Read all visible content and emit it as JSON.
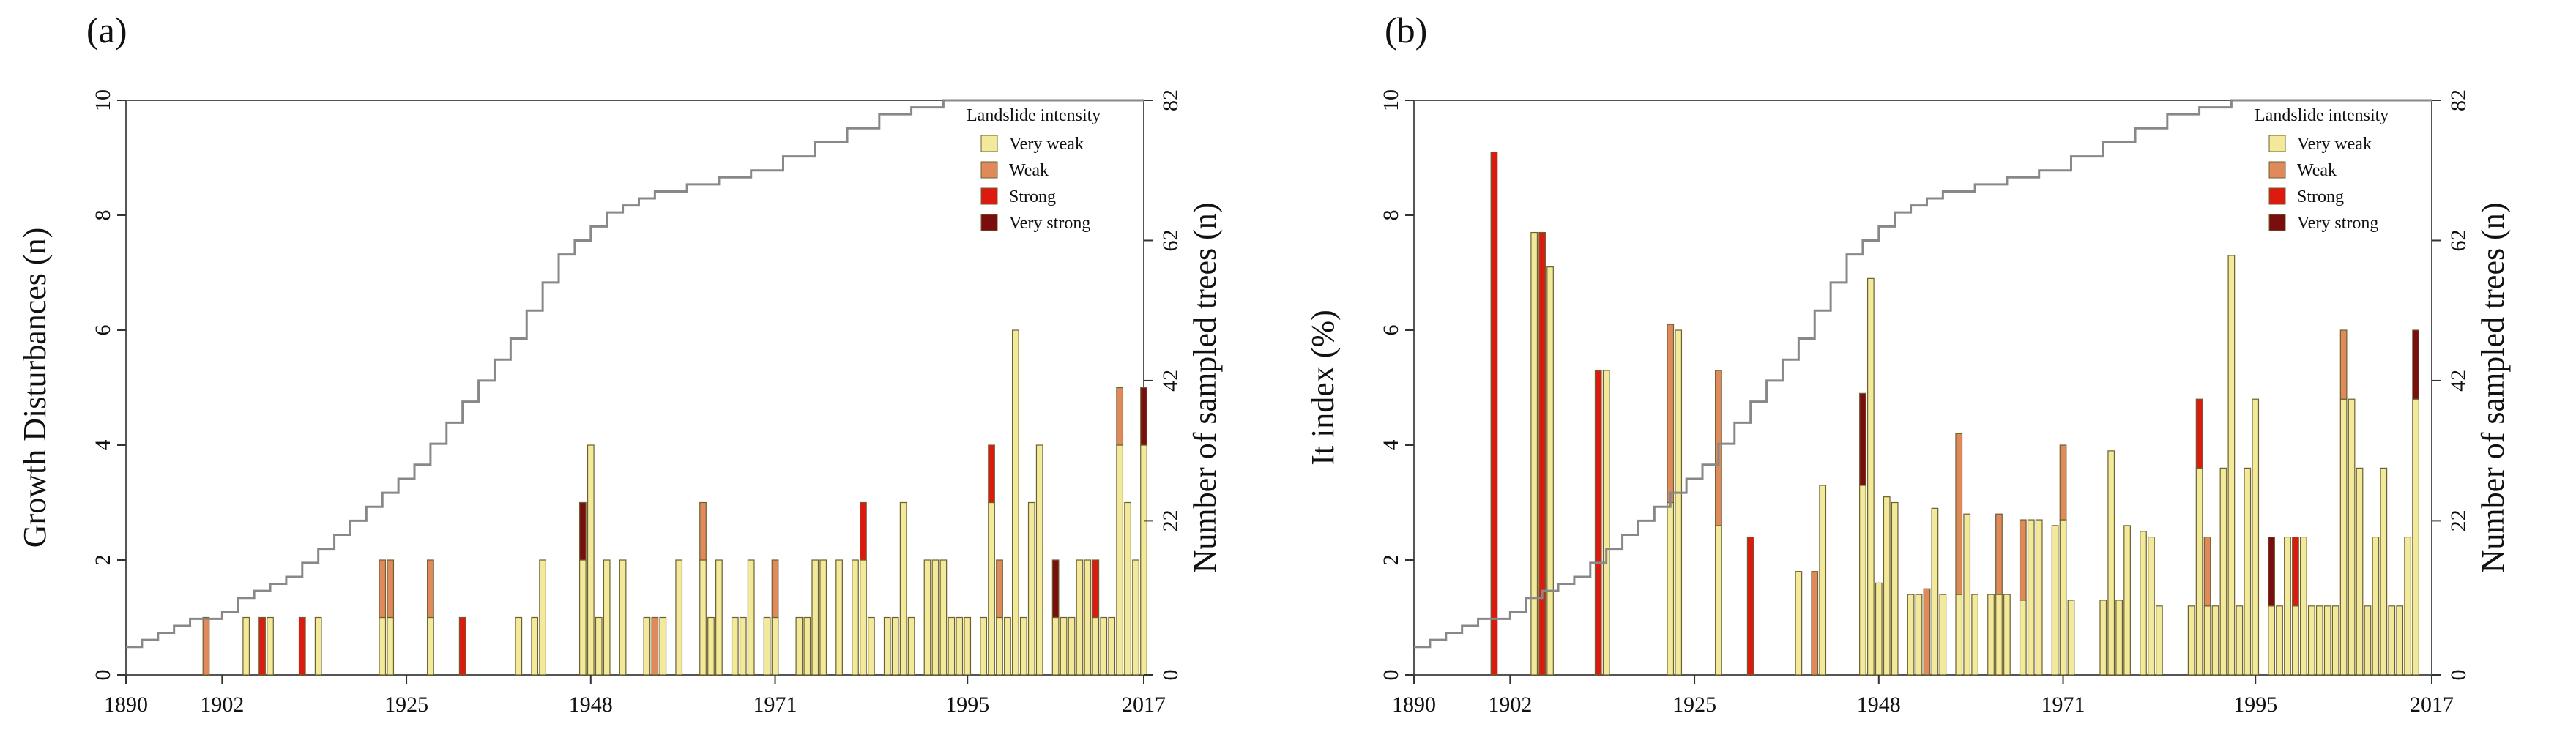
{
  "chart_data": [
    {
      "type": "bar",
      "panel_label": "(a)",
      "ylabel": "Growth Disturbances (n)",
      "y2label": "Number of sampled trees (n)",
      "xlim": [
        1890,
        2017
      ],
      "ylim": [
        0,
        10
      ],
      "y2lim": [
        0,
        82
      ],
      "xticks": [
        1890,
        1902,
        1925,
        1948,
        1971,
        1995,
        2017
      ],
      "yticks": [
        0,
        2,
        4,
        6,
        8,
        10
      ],
      "y2ticks": [
        0,
        22,
        42,
        62,
        82
      ],
      "grid": false,
      "legend_title": "Landslide intensity",
      "legend_position": "top-right",
      "series": [
        {
          "name": "Very weak",
          "color": "#f3e99a"
        },
        {
          "name": "Weak",
          "color": "#e08a5c"
        },
        {
          "name": "Strong",
          "color": "#dd1a10"
        },
        {
          "name": "Very strong",
          "color": "#7a0e0e"
        }
      ],
      "bars": [
        [
          1900,
          0,
          1,
          0,
          0
        ],
        [
          1905,
          1,
          0,
          0,
          0
        ],
        [
          1907,
          0,
          0,
          1,
          0
        ],
        [
          1908,
          1,
          0,
          0,
          0
        ],
        [
          1912,
          0,
          0,
          1,
          0
        ],
        [
          1914,
          1,
          0,
          0,
          0
        ],
        [
          1922,
          1,
          1,
          0,
          0
        ],
        [
          1923,
          1,
          1,
          0,
          0
        ],
        [
          1928,
          1,
          1,
          0,
          0
        ],
        [
          1932,
          0,
          0,
          1,
          0
        ],
        [
          1939,
          1,
          0,
          0,
          0
        ],
        [
          1941,
          1,
          0,
          0,
          0
        ],
        [
          1942,
          2,
          0,
          0,
          0
        ],
        [
          1947,
          2,
          0,
          0,
          1
        ],
        [
          1948,
          4,
          0,
          0,
          0
        ],
        [
          1949,
          1,
          0,
          0,
          0
        ],
        [
          1950,
          2,
          0,
          0,
          0
        ],
        [
          1952,
          2,
          0,
          0,
          0
        ],
        [
          1955,
          1,
          0,
          0,
          0
        ],
        [
          1956,
          0,
          1,
          0,
          0
        ],
        [
          1957,
          1,
          0,
          0,
          0
        ],
        [
          1959,
          2,
          0,
          0,
          0
        ],
        [
          1962,
          2,
          1,
          0,
          0
        ],
        [
          1963,
          1,
          0,
          0,
          0
        ],
        [
          1964,
          2,
          0,
          0,
          0
        ],
        [
          1966,
          1,
          0,
          0,
          0
        ],
        [
          1967,
          1,
          0,
          0,
          0
        ],
        [
          1968,
          2,
          0,
          0,
          0
        ],
        [
          1970,
          1,
          0,
          0,
          0
        ],
        [
          1971,
          1,
          1,
          0,
          0
        ],
        [
          1974,
          1,
          0,
          0,
          0
        ],
        [
          1975,
          1,
          0,
          0,
          0
        ],
        [
          1976,
          2,
          0,
          0,
          0
        ],
        [
          1977,
          2,
          0,
          0,
          0
        ],
        [
          1979,
          2,
          0,
          0,
          0
        ],
        [
          1981,
          2,
          0,
          0,
          0
        ],
        [
          1982,
          2,
          0,
          1,
          0
        ],
        [
          1983,
          1,
          0,
          0,
          0
        ],
        [
          1985,
          1,
          0,
          0,
          0
        ],
        [
          1986,
          1,
          0,
          0,
          0
        ],
        [
          1987,
          3,
          0,
          0,
          0
        ],
        [
          1988,
          1,
          0,
          0,
          0
        ],
        [
          1990,
          2,
          0,
          0,
          0
        ],
        [
          1991,
          2,
          0,
          0,
          0
        ],
        [
          1992,
          2,
          0,
          0,
          0
        ],
        [
          1993,
          1,
          0,
          0,
          0
        ],
        [
          1994,
          1,
          0,
          0,
          0
        ],
        [
          1995,
          1,
          0,
          0,
          0
        ],
        [
          1997,
          1,
          0,
          0,
          0
        ],
        [
          1998,
          3,
          0,
          1,
          0
        ],
        [
          1999,
          1,
          1,
          0,
          0
        ],
        [
          2000,
          1,
          0,
          0,
          0
        ],
        [
          2001,
          6,
          0,
          0,
          0
        ],
        [
          2002,
          1,
          0,
          0,
          0
        ],
        [
          2003,
          3,
          0,
          0,
          0
        ],
        [
          2004,
          4,
          0,
          0,
          0
        ],
        [
          2006,
          1,
          0,
          0,
          1
        ],
        [
          2007,
          1,
          0,
          0,
          0
        ],
        [
          2008,
          1,
          0,
          0,
          0
        ],
        [
          2009,
          2,
          0,
          0,
          0
        ],
        [
          2010,
          2,
          0,
          0,
          0
        ],
        [
          2011,
          1,
          0,
          1,
          0
        ],
        [
          2012,
          1,
          0,
          0,
          0
        ],
        [
          2013,
          1,
          0,
          0,
          0
        ],
        [
          2014,
          4,
          1,
          0,
          0
        ],
        [
          2015,
          3,
          0,
          0,
          0
        ],
        [
          2016,
          2,
          0,
          0,
          0
        ],
        [
          2017,
          4,
          0,
          0,
          1
        ]
      ],
      "sampled_trees": [
        [
          1890,
          4
        ],
        [
          1892,
          5
        ],
        [
          1894,
          6
        ],
        [
          1896,
          7
        ],
        [
          1898,
          8
        ],
        [
          1902,
          9
        ],
        [
          1904,
          11
        ],
        [
          1906,
          12
        ],
        [
          1908,
          13
        ],
        [
          1910,
          14
        ],
        [
          1912,
          16
        ],
        [
          1914,
          18
        ],
        [
          1916,
          20
        ],
        [
          1918,
          22
        ],
        [
          1920,
          24
        ],
        [
          1922,
          26
        ],
        [
          1924,
          28
        ],
        [
          1926,
          30
        ],
        [
          1928,
          33
        ],
        [
          1930,
          36
        ],
        [
          1932,
          39
        ],
        [
          1934,
          42
        ],
        [
          1936,
          45
        ],
        [
          1938,
          48
        ],
        [
          1940,
          52
        ],
        [
          1942,
          56
        ],
        [
          1944,
          60
        ],
        [
          1946,
          62
        ],
        [
          1948,
          64
        ],
        [
          1950,
          66
        ],
        [
          1952,
          67
        ],
        [
          1954,
          68
        ],
        [
          1956,
          69
        ],
        [
          1958,
          69
        ],
        [
          1960,
          70
        ],
        [
          1964,
          71
        ],
        [
          1968,
          72
        ],
        [
          1972,
          74
        ],
        [
          1976,
          76
        ],
        [
          1980,
          78
        ],
        [
          1984,
          80
        ],
        [
          1988,
          81
        ],
        [
          1992,
          82
        ],
        [
          2017,
          82
        ]
      ]
    },
    {
      "type": "bar",
      "panel_label": "(b)",
      "ylabel": "It index (%)",
      "y2label": "Number of sampled trees (n)",
      "xlim": [
        1890,
        2017
      ],
      "ylim": [
        0,
        10
      ],
      "y2lim": [
        0,
        82
      ],
      "xticks": [
        1890,
        1902,
        1925,
        1948,
        1971,
        1995,
        2017
      ],
      "yticks": [
        0,
        2,
        4,
        6,
        8,
        10
      ],
      "y2ticks": [
        0,
        22,
        42,
        62,
        82
      ],
      "grid": false,
      "legend_title": "Landslide intensity",
      "legend_position": "top-right",
      "series": [
        {
          "name": "Very weak",
          "color": "#f3e99a"
        },
        {
          "name": "Weak",
          "color": "#e08a5c"
        },
        {
          "name": "Strong",
          "color": "#dd1a10"
        },
        {
          "name": "Very strong",
          "color": "#7a0e0e"
        }
      ],
      "bars": [
        [
          1900,
          0,
          0,
          9.1,
          0
        ],
        [
          1905,
          7.7,
          0,
          0,
          0
        ],
        [
          1906,
          0,
          0,
          7.7,
          0
        ],
        [
          1907,
          7.1,
          0,
          0,
          0
        ],
        [
          1913,
          0,
          0,
          5.3,
          0
        ],
        [
          1914,
          5.3,
          0,
          0,
          0
        ],
        [
          1922,
          3.0,
          3.1,
          0,
          0
        ],
        [
          1923,
          6.0,
          0,
          0,
          0
        ],
        [
          1928,
          2.6,
          2.7,
          0,
          0
        ],
        [
          1932,
          0,
          0,
          2.4,
          0
        ],
        [
          1938,
          1.8,
          0,
          0,
          0
        ],
        [
          1940,
          0,
          1.8,
          0,
          0
        ],
        [
          1941,
          3.3,
          0,
          0,
          0
        ],
        [
          1946,
          3.3,
          0,
          0,
          1.6
        ],
        [
          1947,
          6.9,
          0,
          0,
          0
        ],
        [
          1948,
          1.6,
          0,
          0,
          0
        ],
        [
          1949,
          3.1,
          0,
          0,
          0
        ],
        [
          1950,
          3.0,
          0,
          0,
          0
        ],
        [
          1952,
          1.4,
          0,
          0,
          0
        ],
        [
          1953,
          1.4,
          0,
          0,
          0
        ],
        [
          1954,
          0,
          1.5,
          0,
          0
        ],
        [
          1955,
          2.9,
          0,
          0,
          0
        ],
        [
          1956,
          1.4,
          0,
          0,
          0
        ],
        [
          1958,
          1.4,
          2.8,
          0,
          0
        ],
        [
          1959,
          2.8,
          0,
          0,
          0
        ],
        [
          1960,
          1.4,
          0,
          0,
          0
        ],
        [
          1962,
          1.4,
          0,
          0,
          0
        ],
        [
          1963,
          1.4,
          1.4,
          0,
          0
        ],
        [
          1964,
          1.4,
          0,
          0,
          0
        ],
        [
          1966,
          1.3,
          1.4,
          0,
          0
        ],
        [
          1967,
          2.7,
          0,
          0,
          0
        ],
        [
          1968,
          2.7,
          0,
          0,
          0
        ],
        [
          1970,
          2.6,
          0,
          0,
          0
        ],
        [
          1971,
          2.7,
          1.3,
          0,
          0
        ],
        [
          1972,
          1.3,
          0,
          0,
          0
        ],
        [
          1976,
          1.3,
          0,
          0,
          0
        ],
        [
          1977,
          3.9,
          0,
          0,
          0
        ],
        [
          1978,
          1.3,
          0,
          0,
          0
        ],
        [
          1979,
          2.6,
          0,
          0,
          0
        ],
        [
          1981,
          2.5,
          0,
          0,
          0
        ],
        [
          1982,
          2.4,
          0,
          0,
          0
        ],
        [
          1983,
          1.2,
          0,
          0,
          0
        ],
        [
          1987,
          1.2,
          0,
          0,
          0
        ],
        [
          1988,
          3.6,
          0,
          1.2,
          0
        ],
        [
          1989,
          1.2,
          1.2,
          0,
          0
        ],
        [
          1990,
          1.2,
          0,
          0,
          0
        ],
        [
          1991,
          3.6,
          0,
          0,
          0
        ],
        [
          1992,
          7.3,
          0,
          0,
          0
        ],
        [
          1993,
          1.2,
          0,
          0,
          0
        ],
        [
          1994,
          3.6,
          0,
          0,
          0
        ],
        [
          1995,
          4.8,
          0,
          0,
          0
        ],
        [
          1997,
          1.2,
          0,
          0,
          1.2
        ],
        [
          1998,
          1.2,
          0,
          0,
          0
        ],
        [
          1999,
          2.4,
          0,
          0,
          0
        ],
        [
          2000,
          1.2,
          0,
          1.2,
          0
        ],
        [
          2001,
          2.4,
          0,
          0,
          0
        ],
        [
          2002,
          1.2,
          0,
          0,
          0
        ],
        [
          2003,
          1.2,
          0,
          0,
          0
        ],
        [
          2004,
          1.2,
          0,
          0,
          0
        ],
        [
          2005,
          1.2,
          0,
          0,
          0
        ],
        [
          2006,
          4.8,
          1.2,
          0,
          0
        ],
        [
          2007,
          4.8,
          0,
          0,
          0
        ],
        [
          2008,
          3.6,
          0,
          0,
          0
        ],
        [
          2009,
          1.2,
          0,
          0,
          0
        ],
        [
          2010,
          2.4,
          0,
          0,
          0
        ],
        [
          2011,
          3.6,
          0,
          0,
          0
        ],
        [
          2012,
          1.2,
          0,
          0,
          0
        ],
        [
          2013,
          1.2,
          0,
          0,
          0
        ],
        [
          2014,
          2.4,
          0,
          0,
          0
        ],
        [
          2015,
          4.8,
          0,
          0,
          1.2
        ]
      ],
      "sampled_trees": [
        [
          1890,
          4
        ],
        [
          1892,
          5
        ],
        [
          1894,
          6
        ],
        [
          1896,
          7
        ],
        [
          1898,
          8
        ],
        [
          1902,
          9
        ],
        [
          1904,
          11
        ],
        [
          1906,
          12
        ],
        [
          1908,
          13
        ],
        [
          1910,
          14
        ],
        [
          1912,
          16
        ],
        [
          1914,
          18
        ],
        [
          1916,
          20
        ],
        [
          1918,
          22
        ],
        [
          1920,
          24
        ],
        [
          1922,
          26
        ],
        [
          1924,
          28
        ],
        [
          1926,
          30
        ],
        [
          1928,
          33
        ],
        [
          1930,
          36
        ],
        [
          1932,
          39
        ],
        [
          1934,
          42
        ],
        [
          1936,
          45
        ],
        [
          1938,
          48
        ],
        [
          1940,
          52
        ],
        [
          1942,
          56
        ],
        [
          1944,
          60
        ],
        [
          1946,
          62
        ],
        [
          1948,
          64
        ],
        [
          1950,
          66
        ],
        [
          1952,
          67
        ],
        [
          1954,
          68
        ],
        [
          1956,
          69
        ],
        [
          1958,
          69
        ],
        [
          1960,
          70
        ],
        [
          1964,
          71
        ],
        [
          1968,
          72
        ],
        [
          1972,
          74
        ],
        [
          1976,
          76
        ],
        [
          1980,
          78
        ],
        [
          1984,
          80
        ],
        [
          1988,
          81
        ],
        [
          1992,
          82
        ],
        [
          2017,
          82
        ]
      ]
    }
  ]
}
